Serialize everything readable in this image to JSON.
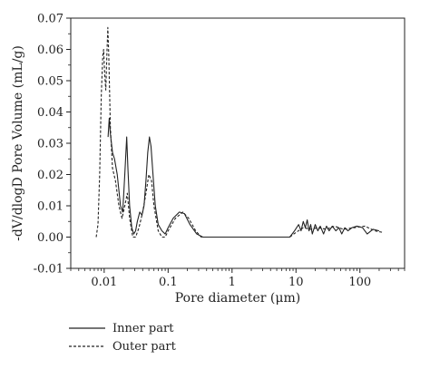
{
  "chart_data": {
    "type": "line",
    "xlabel": "Pore diameter (μm)",
    "ylabel": "-dV/dlogD Pore Volume (mL/g)",
    "x_scale": "log",
    "xlim": [
      0.003,
      500
    ],
    "ylim": [
      -0.01,
      0.07
    ],
    "x_ticks": [
      {
        "value": 0.01,
        "label": "0.01"
      },
      {
        "value": 0.1,
        "label": "0.1"
      },
      {
        "value": 1,
        "label": "1"
      },
      {
        "value": 10,
        "label": "10"
      },
      {
        "value": 100,
        "label": "100"
      }
    ],
    "y_ticks": [
      {
        "value": -0.01,
        "label": "-0.01"
      },
      {
        "value": 0.0,
        "label": "0.00"
      },
      {
        "value": 0.01,
        "label": "0.01"
      },
      {
        "value": 0.02,
        "label": "0.02"
      },
      {
        "value": 0.03,
        "label": "0.03"
      },
      {
        "value": 0.04,
        "label": "0.04"
      },
      {
        "value": 0.05,
        "label": "0.05"
      },
      {
        "value": 0.06,
        "label": "0.06"
      },
      {
        "value": 0.07,
        "label": "0.07"
      }
    ],
    "legend_placement": "below",
    "series": [
      {
        "name": "Inner part",
        "style": "solid",
        "color": "#222222",
        "points": [
          [
            0.0115,
            0.032
          ],
          [
            0.012,
            0.038
          ],
          [
            0.0125,
            0.033
          ],
          [
            0.0135,
            0.027
          ],
          [
            0.0145,
            0.025
          ],
          [
            0.016,
            0.02
          ],
          [
            0.018,
            0.01
          ],
          [
            0.0195,
            0.008
          ],
          [
            0.021,
            0.02
          ],
          [
            0.0225,
            0.032
          ],
          [
            0.0235,
            0.022
          ],
          [
            0.025,
            0.01
          ],
          [
            0.027,
            0.003
          ],
          [
            0.029,
            0.001
          ],
          [
            0.031,
            0.002
          ],
          [
            0.033,
            0.005
          ],
          [
            0.036,
            0.008
          ],
          [
            0.039,
            0.007
          ],
          [
            0.042,
            0.01
          ],
          [
            0.045,
            0.018
          ],
          [
            0.048,
            0.027
          ],
          [
            0.051,
            0.032
          ],
          [
            0.054,
            0.029
          ],
          [
            0.058,
            0.02
          ],
          [
            0.063,
            0.01
          ],
          [
            0.07,
            0.004
          ],
          [
            0.08,
            0.002
          ],
          [
            0.09,
            0.001
          ],
          [
            0.1,
            0.003
          ],
          [
            0.12,
            0.006
          ],
          [
            0.15,
            0.008
          ],
          [
            0.18,
            0.0075
          ],
          [
            0.22,
            0.004
          ],
          [
            0.28,
            0.001
          ],
          [
            0.35,
            0.0
          ],
          [
            1,
            0.0
          ],
          [
            3,
            0.0
          ],
          [
            8,
            0.0
          ],
          [
            9.5,
            0.002
          ],
          [
            11,
            0.004
          ],
          [
            12,
            0.002
          ],
          [
            13,
            0.005
          ],
          [
            14,
            0.003
          ],
          [
            15,
            0.0055
          ],
          [
            16,
            0.002
          ],
          [
            17,
            0.004
          ],
          [
            18,
            0.001
          ],
          [
            20,
            0.004
          ],
          [
            22,
            0.002
          ],
          [
            24,
            0.0035
          ],
          [
            27,
            0.001
          ],
          [
            30,
            0.0035
          ],
          [
            33,
            0.002
          ],
          [
            37,
            0.0035
          ],
          [
            42,
            0.002
          ],
          [
            47,
            0.003
          ],
          [
            52,
            0.001
          ],
          [
            58,
            0.003
          ],
          [
            65,
            0.002
          ],
          [
            75,
            0.003
          ],
          [
            90,
            0.0035
          ],
          [
            110,
            0.003
          ],
          [
            130,
            0.001
          ],
          [
            160,
            0.0025
          ],
          [
            200,
            0.002
          ]
        ]
      },
      {
        "name": "Outer part",
        "style": "dashed",
        "color": "#222222",
        "points": [
          [
            0.0075,
            0.0
          ],
          [
            0.008,
            0.004
          ],
          [
            0.0085,
            0.02
          ],
          [
            0.009,
            0.045
          ],
          [
            0.0095,
            0.058
          ],
          [
            0.0098,
            0.06
          ],
          [
            0.0102,
            0.052
          ],
          [
            0.0106,
            0.047
          ],
          [
            0.011,
            0.058
          ],
          [
            0.0114,
            0.067
          ],
          [
            0.0118,
            0.058
          ],
          [
            0.0125,
            0.035
          ],
          [
            0.0135,
            0.022
          ],
          [
            0.015,
            0.018
          ],
          [
            0.017,
            0.01
          ],
          [
            0.019,
            0.006
          ],
          [
            0.021,
            0.01
          ],
          [
            0.023,
            0.014
          ],
          [
            0.025,
            0.006
          ],
          [
            0.028,
            0.0
          ],
          [
            0.031,
            0.0
          ],
          [
            0.035,
            0.003
          ],
          [
            0.04,
            0.008
          ],
          [
            0.045,
            0.014
          ],
          [
            0.05,
            0.02
          ],
          [
            0.055,
            0.018
          ],
          [
            0.06,
            0.01
          ],
          [
            0.07,
            0.002
          ],
          [
            0.08,
            0.0
          ],
          [
            0.09,
            0.0
          ],
          [
            0.1,
            0.002
          ],
          [
            0.13,
            0.006
          ],
          [
            0.17,
            0.008
          ],
          [
            0.21,
            0.006
          ],
          [
            0.27,
            0.002
          ],
          [
            0.33,
            0.0
          ],
          [
            1,
            0.0
          ],
          [
            5,
            0.0
          ],
          [
            8,
            0.0
          ],
          [
            10,
            0.0015
          ],
          [
            13,
            0.003
          ],
          [
            17,
            0.0025
          ],
          [
            22,
            0.003
          ],
          [
            30,
            0.0025
          ],
          [
            40,
            0.0035
          ],
          [
            55,
            0.0025
          ],
          [
            80,
            0.003
          ],
          [
            120,
            0.0035
          ],
          [
            170,
            0.002
          ],
          [
            230,
            0.0015
          ]
        ]
      }
    ]
  }
}
